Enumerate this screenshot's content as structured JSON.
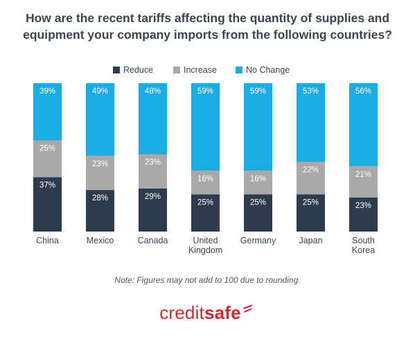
{
  "chart_data": {
    "type": "bar",
    "stacked": true,
    "title_lines": [
      "How are the recent tariffs affecting the quantity of supplies and",
      "equipment your company imports from the following countries?"
    ],
    "categories": [
      [
        "China"
      ],
      [
        "Mexico"
      ],
      [
        "Canada"
      ],
      [
        "United",
        "Kingdom"
      ],
      [
        "Germany"
      ],
      [
        "Japan"
      ],
      [
        "South",
        "Korea"
      ]
    ],
    "series": [
      {
        "name": "Reduce",
        "color": "#2e3b4e",
        "label_color": "#ffffff",
        "values": [
          37,
          28,
          29,
          25,
          25,
          25,
          23
        ]
      },
      {
        "name": "Increase",
        "color": "#a9a9a9",
        "label_color": "#ffffff",
        "values": [
          25,
          23,
          23,
          16,
          16,
          22,
          21
        ]
      },
      {
        "name": "No Change",
        "color": "#1aace3",
        "label_color": "#ffffff",
        "values": [
          39,
          49,
          48,
          59,
          59,
          53,
          56
        ]
      }
    ],
    "value_suffix": "%",
    "legend_position": "top",
    "grid": false
  },
  "note": "Note: Figures may not add to 100 due to rounding.",
  "logo": {
    "part1": "credit",
    "part2": "safe"
  }
}
